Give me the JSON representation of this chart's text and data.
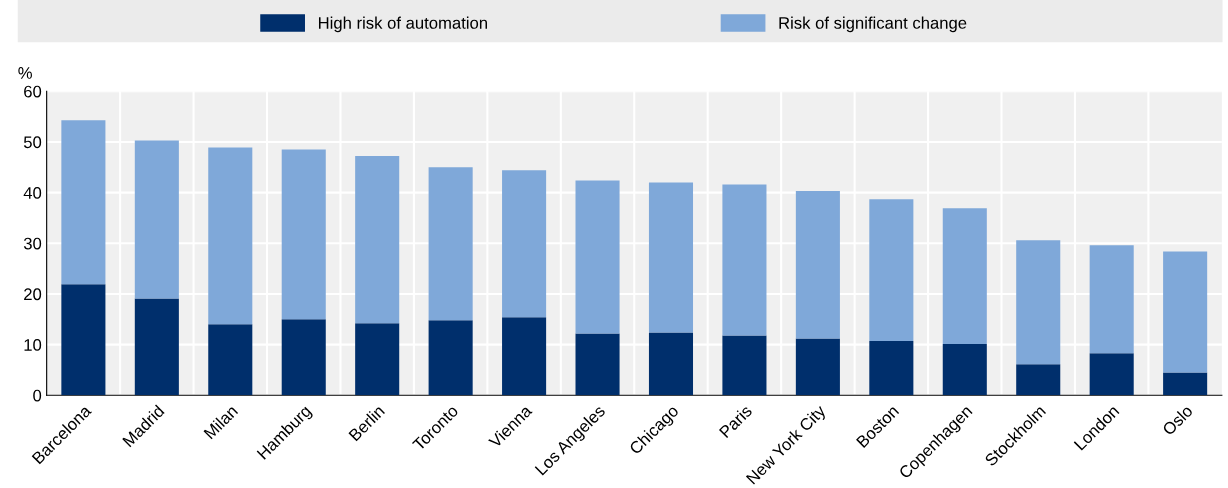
{
  "chart_data": {
    "type": "bar",
    "stacked": true,
    "ylabel": "%",
    "categories": [
      "Barcelona",
      "Madrid",
      "Milan",
      "Hamburg",
      "Berlin",
      "Toronto",
      "Vienna",
      "Los Angeles",
      "Chicago",
      "Paris",
      "New York City",
      "Boston",
      "Copenhagen",
      "Stockholm",
      "London",
      "Oslo"
    ],
    "series": [
      {
        "name": "High risk of automation",
        "color": "#002f6c",
        "values": [
          21.9,
          19.1,
          14.0,
          15.0,
          14.2,
          14.8,
          15.4,
          12.2,
          12.4,
          11.8,
          11.2,
          10.7,
          10.1,
          6.1,
          8.3,
          4.5
        ]
      },
      {
        "name": "Risk of significant change",
        "color": "#7fa8d9",
        "values": [
          32.4,
          31.2,
          34.9,
          33.5,
          33.0,
          30.2,
          29.0,
          30.2,
          29.6,
          29.8,
          29.1,
          28.0,
          26.8,
          24.5,
          21.3,
          23.9
        ]
      }
    ],
    "ylim": [
      0,
      60
    ],
    "yticks": [
      0,
      10,
      20,
      30,
      40,
      50,
      60
    ],
    "grid": "y",
    "legend": "top"
  }
}
